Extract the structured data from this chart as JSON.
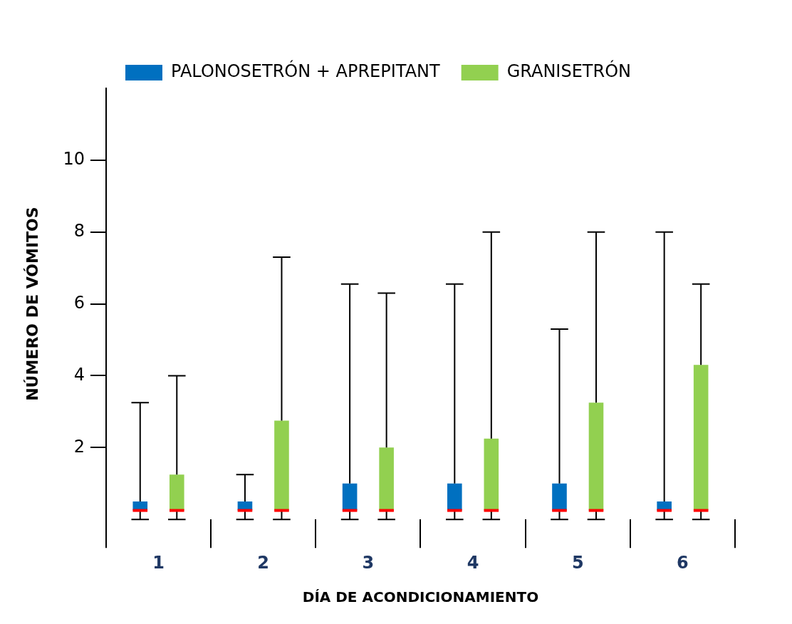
{
  "chart_data": {
    "type": "box",
    "xlabel": "DÍA DE ACONDICIONAMIENTO",
    "ylabel": "NÚMERO DE VÓMITOS",
    "categories": [
      "1",
      "2",
      "3",
      "4",
      "5",
      "6"
    ],
    "ylim": [
      0,
      12
    ],
    "yticks": [
      2,
      4,
      6,
      8,
      10
    ],
    "grid": false,
    "legend": "top",
    "series": [
      {
        "name": "PALONOSETRÓN + APREPITANT",
        "color": "#0070c0",
        "boxes": [
          {
            "low": 0,
            "q1": 0.25,
            "median": 0.25,
            "q3": 0.5,
            "high": 3.25
          },
          {
            "low": 0,
            "q1": 0.25,
            "median": 0.25,
            "q3": 0.5,
            "high": 1.25
          },
          {
            "low": 0,
            "q1": 0.25,
            "median": 0.25,
            "q3": 1,
            "high": 6.55
          },
          {
            "low": 0,
            "q1": 0.25,
            "median": 0.25,
            "q3": 1,
            "high": 6.55
          },
          {
            "low": 0,
            "q1": 0.25,
            "median": 0.25,
            "q3": 1,
            "high": 5.3
          },
          {
            "low": 0,
            "q1": 0.25,
            "median": 0.25,
            "q3": 0.5,
            "high": 8
          }
        ]
      },
      {
        "name": "GRANISETRÓN",
        "color": "#92d050",
        "boxes": [
          {
            "low": 0,
            "q1": 0.25,
            "median": 0.25,
            "q3": 1.25,
            "high": 4
          },
          {
            "low": 0,
            "q1": 0.25,
            "median": 0.25,
            "q3": 2.75,
            "high": 7.3
          },
          {
            "low": 0,
            "q1": 0.25,
            "median": 0.25,
            "q3": 2,
            "high": 6.3
          },
          {
            "low": 0,
            "q1": 0.25,
            "median": 0.25,
            "q3": 2.25,
            "high": 8
          },
          {
            "low": 0,
            "q1": 0.25,
            "median": 0.25,
            "q3": 3.25,
            "high": 8
          },
          {
            "low": 0,
            "q1": 0.25,
            "median": 0.25,
            "q3": 4.3,
            "high": 6.55
          }
        ]
      }
    ]
  }
}
